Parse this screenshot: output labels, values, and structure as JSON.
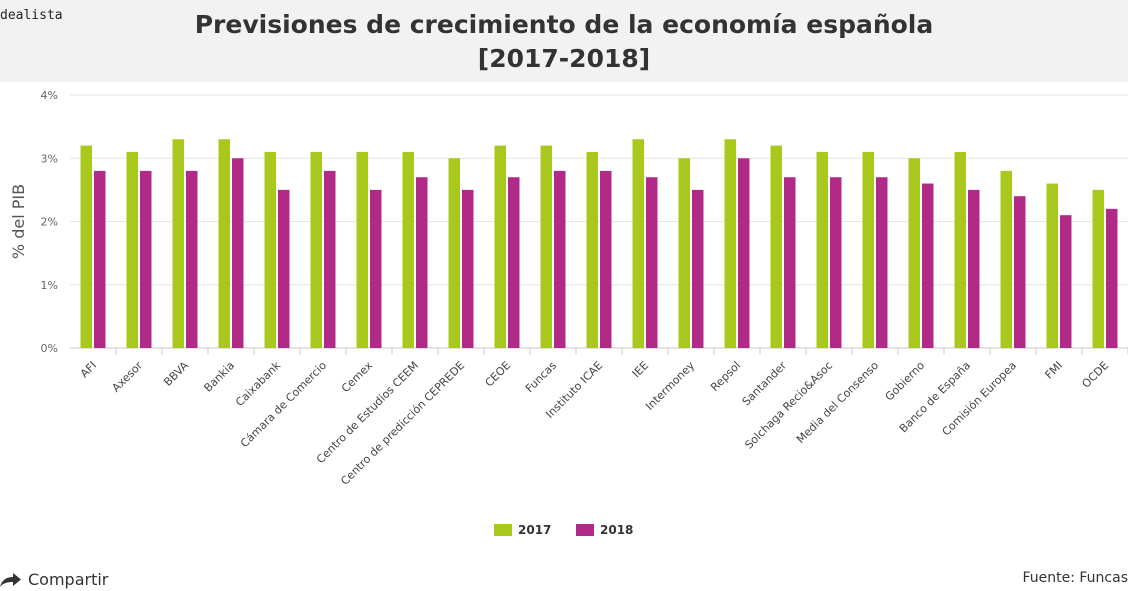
{
  "header": {
    "logo": "dealista",
    "title_line1": "Previsiones de crecimiento de la economía española",
    "title_line2": "[2017-2018]"
  },
  "share": {
    "label": "Compartir",
    "icon": "share-arrow-icon"
  },
  "source": "Fuente: Funcas",
  "chart_data": {
    "type": "bar",
    "ylabel": "% del PIB",
    "ylim": [
      0,
      4
    ],
    "yticks": [
      "0%",
      "1%",
      "2%",
      "3%",
      "4%"
    ],
    "grid": true,
    "legend_position": "bottom",
    "categories": [
      "AFI",
      "Axesor",
      "BBVA",
      "Bankia",
      "Caixabank",
      "Cámara de Comercio",
      "Cemex",
      "Centro de Estudios CEEM",
      "Centro de predicción CEPREDE",
      "CEOE",
      "Funcas",
      "Instituto ICAE",
      "IEE",
      "Intermoney",
      "Repsol",
      "Santander",
      "Solchaga Recio&Asoc",
      "Media del Consenso",
      "Gobierno",
      "Banco de España",
      "Comisión Europea",
      "FMI",
      "OCDE"
    ],
    "series": [
      {
        "name": "2017",
        "color": "#a8c81e",
        "values": [
          3.2,
          3.1,
          3.3,
          3.3,
          3.1,
          3.1,
          3.1,
          3.1,
          3.0,
          3.2,
          3.2,
          3.1,
          3.3,
          3.0,
          3.3,
          3.2,
          3.1,
          3.1,
          3.0,
          3.1,
          2.8,
          2.6,
          2.5
        ]
      },
      {
        "name": "2018",
        "color": "#b22a88",
        "values": [
          2.8,
          2.8,
          2.8,
          3.0,
          2.5,
          2.8,
          2.5,
          2.7,
          2.5,
          2.7,
          2.8,
          2.8,
          2.7,
          2.5,
          3.0,
          2.7,
          2.7,
          2.7,
          2.6,
          2.5,
          2.4,
          2.1,
          2.2
        ]
      }
    ]
  }
}
